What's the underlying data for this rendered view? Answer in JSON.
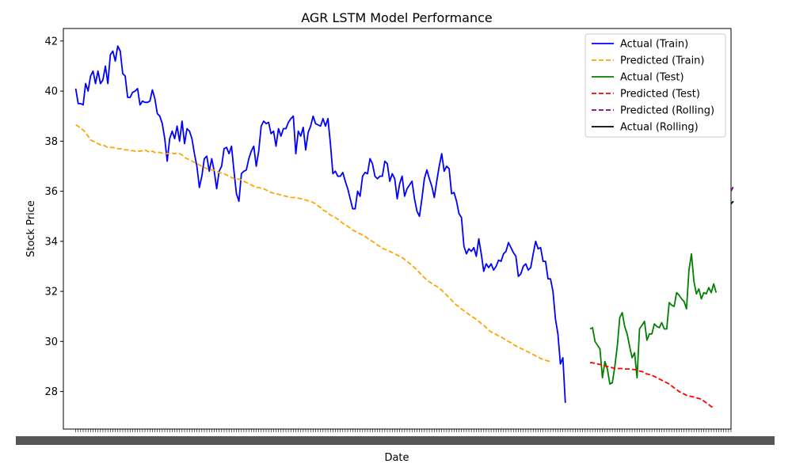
{
  "chart_data": {
    "type": "line",
    "title": "AGR LSTM Model Performance",
    "xlabel": "Date",
    "ylabel": "Stock Price",
    "ylim": [
      26.5,
      42.5
    ],
    "yticks": [
      28,
      30,
      32,
      34,
      36,
      38,
      40,
      42
    ],
    "xlim": [
      -5,
      265
    ],
    "legend_position": "top-right",
    "grid": false,
    "series": [
      {
        "name": "Actual (Train)",
        "color": "#0000ff",
        "dash": "solid",
        "x_start": 0,
        "values": [
          40.1,
          39.5,
          39.5,
          39.45,
          40.3,
          40.0,
          40.6,
          40.8,
          40.3,
          40.8,
          40.3,
          40.45,
          41.0,
          40.3,
          41.45,
          41.6,
          41.2,
          41.8,
          41.6,
          40.7,
          40.6,
          39.75,
          39.75,
          39.95,
          40.0,
          40.1,
          39.45,
          39.6,
          39.55,
          39.55,
          39.6,
          40.05,
          39.7,
          39.1,
          39.0,
          38.7,
          38.1,
          37.2,
          38.1,
          38.4,
          38.1,
          38.6,
          38.0,
          38.8,
          37.9,
          38.5,
          38.4,
          38.1,
          37.5,
          37.0,
          36.15,
          36.6,
          37.3,
          37.4,
          36.8,
          37.3,
          36.8,
          36.1,
          36.8,
          37.0,
          37.7,
          37.75,
          37.5,
          37.8,
          36.8,
          35.9,
          35.6,
          36.7,
          36.8,
          36.85,
          37.3,
          37.6,
          37.8,
          37.0,
          37.6,
          38.6,
          38.8,
          38.7,
          38.75,
          38.3,
          38.4,
          37.8,
          38.5,
          38.2,
          38.5,
          38.5,
          38.75,
          38.9,
          39.0,
          37.5,
          38.4,
          38.2,
          38.55,
          37.65,
          38.35,
          38.6,
          39.0,
          38.7,
          38.65,
          38.6,
          38.9,
          38.6,
          38.9,
          37.9,
          36.7,
          36.8,
          36.6,
          36.6,
          36.75,
          36.4,
          36.1,
          35.7,
          35.3,
          35.3,
          36.0,
          35.8,
          36.6,
          36.75,
          36.7,
          37.3,
          37.1,
          36.6,
          36.5,
          36.6,
          36.6,
          37.2,
          37.1,
          36.4,
          36.7,
          36.5,
          35.7,
          36.3,
          36.6,
          35.8,
          36.1,
          36.25,
          36.4,
          35.7,
          35.2,
          35.0,
          35.7,
          36.5,
          36.85,
          36.5,
          36.2,
          35.75,
          36.4,
          37.0,
          37.5,
          36.8,
          37.0,
          36.9,
          35.9,
          35.95,
          35.6,
          35.1,
          34.95,
          33.8,
          33.5,
          33.7,
          33.6,
          33.75,
          33.4,
          34.1,
          33.5,
          32.8,
          33.1,
          32.95,
          33.1,
          32.85,
          33.0,
          33.25,
          33.2,
          33.5,
          33.6,
          33.95,
          33.75,
          33.55,
          33.4,
          32.6,
          32.7,
          33.0,
          33.1,
          32.85,
          32.95,
          33.5,
          34.0,
          33.7,
          33.75,
          33.2,
          33.2,
          32.5,
          32.5,
          32.0,
          30.9,
          30.3,
          29.1,
          29.35,
          27.55
        ]
      },
      {
        "name": "Predicted (Train)",
        "color": "#ffa500",
        "dash": "dashed",
        "x_start": 0,
        "values": [
          38.65,
          38.6,
          38.5,
          38.45,
          38.35,
          38.2,
          38.05,
          38.0,
          37.95,
          37.9,
          37.85,
          37.85,
          37.8,
          37.75,
          37.75,
          37.75,
          37.72,
          37.7,
          37.7,
          37.68,
          37.65,
          37.65,
          37.62,
          37.62,
          37.6,
          37.6,
          37.6,
          37.62,
          37.65,
          37.6,
          37.55,
          37.6,
          37.55,
          37.55,
          37.55,
          37.52,
          37.5,
          37.5,
          37.52,
          37.52,
          37.5,
          37.52,
          37.5,
          37.45,
          37.35,
          37.3,
          37.25,
          37.2,
          37.15,
          37.1,
          37.05,
          37.0,
          36.95,
          36.9,
          36.88,
          36.85,
          36.85,
          36.8,
          36.75,
          36.72,
          36.7,
          36.65,
          36.6,
          36.55,
          36.5,
          36.5,
          36.48,
          36.45,
          36.4,
          36.35,
          36.3,
          36.25,
          36.2,
          36.15,
          36.15,
          36.12,
          36.1,
          36.05,
          36.0,
          35.95,
          35.92,
          35.9,
          35.88,
          35.85,
          35.82,
          35.8,
          35.78,
          35.75,
          35.75,
          35.75,
          35.72,
          35.7,
          35.68,
          35.65,
          35.62,
          35.6,
          35.55,
          35.5,
          35.42,
          35.35,
          35.25,
          35.2,
          35.12,
          35.05,
          35.0,
          34.95,
          34.88,
          34.8,
          34.72,
          34.65,
          34.6,
          34.52,
          34.45,
          34.4,
          34.35,
          34.3,
          34.25,
          34.2,
          34.12,
          34.05,
          34.0,
          33.92,
          33.85,
          33.8,
          33.72,
          33.68,
          33.65,
          33.6,
          33.55,
          33.5,
          33.45,
          33.4,
          33.35,
          33.28,
          33.2,
          33.12,
          33.05,
          32.95,
          32.85,
          32.75,
          32.65,
          32.55,
          32.45,
          32.38,
          32.32,
          32.25,
          32.2,
          32.12,
          32.05,
          31.95,
          31.85,
          31.75,
          31.65,
          31.55,
          31.45,
          31.38,
          31.3,
          31.22,
          31.15,
          31.08,
          31.0,
          30.95,
          30.88,
          30.8,
          30.72,
          30.65,
          30.55,
          30.45,
          30.38,
          30.32,
          30.28,
          30.22,
          30.18,
          30.12,
          30.05,
          30.0,
          29.95,
          29.88,
          29.82,
          29.78,
          29.72,
          29.68,
          29.62,
          29.58,
          29.52,
          29.48,
          29.42,
          29.38,
          29.32,
          29.28,
          29.25,
          29.22,
          29.2
        ]
      },
      {
        "name": "Actual (Test)",
        "color": "#008000",
        "dash": "solid",
        "x_start": 208,
        "values": [
          30.5,
          30.55,
          30.0,
          29.85,
          29.7,
          28.55,
          29.2,
          28.9,
          28.3,
          28.35,
          29.0,
          29.8,
          30.95,
          31.15,
          30.6,
          30.3,
          29.8,
          29.35,
          29.55,
          28.55,
          30.5,
          30.65,
          30.8,
          30.05,
          30.3,
          30.3,
          30.7,
          30.6,
          30.55,
          30.75,
          30.5,
          30.5,
          31.55,
          31.45,
          31.4,
          31.95,
          31.85,
          31.7,
          31.6,
          31.3,
          32.85,
          33.5,
          32.4,
          31.9,
          32.1,
          31.7,
          31.95,
          31.9,
          32.15,
          31.95,
          32.3,
          31.95
        ]
      },
      {
        "name": "Predicted (Test)",
        "color": "#ff0000",
        "dash": "dashed",
        "x_start": 208,
        "values": [
          29.15,
          29.15,
          29.12,
          29.1,
          29.08,
          29.05,
          29.02,
          29.0,
          28.98,
          28.95,
          28.92,
          28.92,
          28.92,
          28.92,
          28.9,
          28.9,
          28.9,
          28.88,
          28.88,
          28.85,
          28.82,
          28.8,
          28.75,
          28.7,
          28.68,
          28.65,
          28.6,
          28.55,
          28.5,
          28.45,
          28.4,
          28.35,
          28.3,
          28.22,
          28.15,
          28.08,
          28.0,
          27.95,
          27.9,
          27.85,
          27.82,
          27.8,
          27.78,
          27.75,
          27.72,
          27.7,
          27.62,
          27.55,
          27.48,
          27.4,
          27.35
        ]
      },
      {
        "name": "Predicted (Rolling)",
        "color": "#800080",
        "dash": "dashed",
        "x_start": 265,
        "values": [
          36.0,
          36.2
        ]
      },
      {
        "name": "Actual (Rolling)",
        "color": "#000000",
        "dash": "solid",
        "x_start": 265,
        "values": [
          35.5,
          35.6
        ]
      }
    ]
  }
}
